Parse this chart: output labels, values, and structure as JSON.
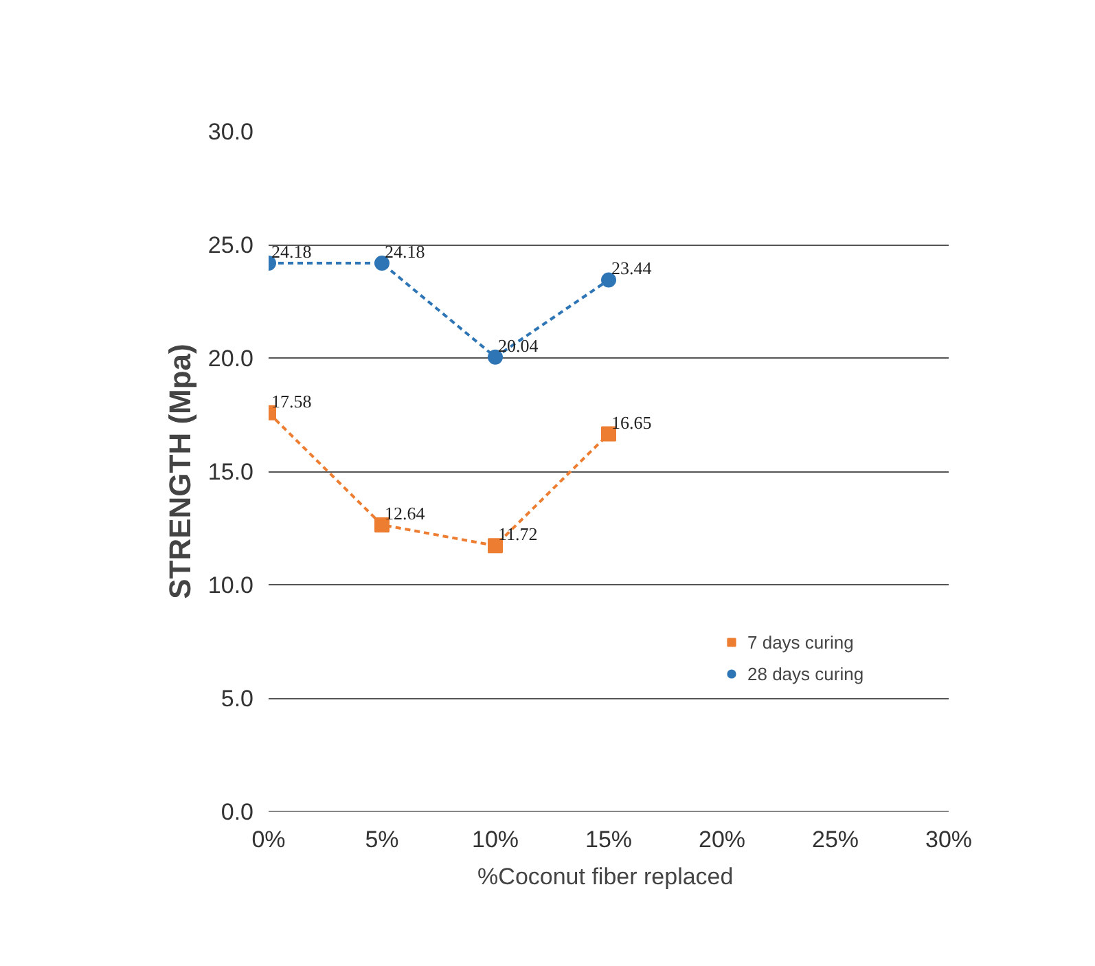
{
  "chart_data": {
    "type": "line",
    "xlabel": "%Coconut fiber  replaced",
    "ylabel": "STRENGTH (Mpa)",
    "x": [
      0,
      5,
      10,
      15
    ],
    "xlim": [
      0,
      30
    ],
    "xticks": [
      {
        "value": 0,
        "label": "0%"
      },
      {
        "value": 5,
        "label": "5%"
      },
      {
        "value": 10,
        "label": "10%"
      },
      {
        "value": 15,
        "label": "15%"
      },
      {
        "value": 20,
        "label": "20%"
      },
      {
        "value": 25,
        "label": "25%"
      },
      {
        "value": 30,
        "label": "30%"
      }
    ],
    "ylim": [
      0,
      30
    ],
    "yticks": [
      {
        "value": 0,
        "label": "0.0"
      },
      {
        "value": 5,
        "label": "5.0"
      },
      {
        "value": 10,
        "label": "10.0"
      },
      {
        "value": 15,
        "label": "15.0"
      },
      {
        "value": 20,
        "label": "20.0"
      },
      {
        "value": 25,
        "label": "25.0"
      },
      {
        "value": 30,
        "label": "30.0"
      }
    ],
    "series": [
      {
        "name": "7 days curing",
        "color": "#ed7d31",
        "marker": "square",
        "values": [
          17.58,
          12.64,
          11.72,
          16.65
        ]
      },
      {
        "name": "28 days curing",
        "color": "#2e75b6",
        "marker": "circle",
        "values": [
          24.18,
          24.18,
          20.04,
          23.44
        ]
      }
    ],
    "line_style": "dashed",
    "grid": "y",
    "legend": "right",
    "data_labels": true
  }
}
